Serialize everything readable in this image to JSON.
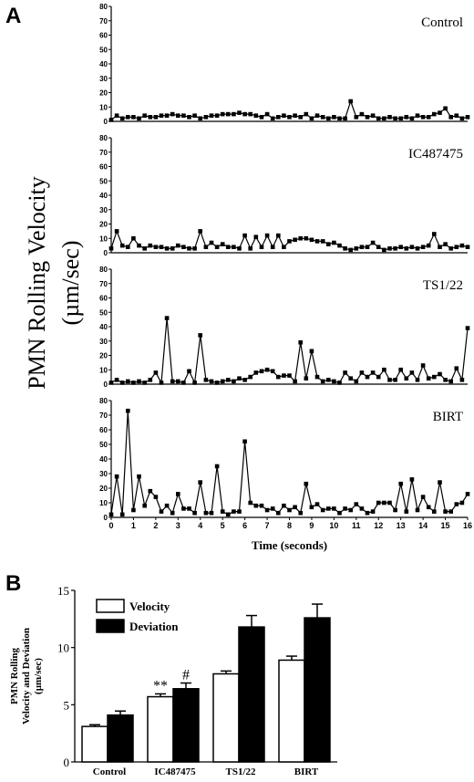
{
  "panel_a_label": "A",
  "panel_b_label": "B",
  "chart_data": [
    {
      "type": "line",
      "ylabel_lines": [
        "PMN Rolling Velocity",
        "(µm/sec)"
      ],
      "xlabel": "Time (seconds)",
      "xlim": [
        0,
        16
      ],
      "x_ticks": [
        "0",
        "1",
        "2",
        "3",
        "4",
        "5",
        "6",
        "7",
        "8",
        "9",
        "10",
        "11",
        "12",
        "13",
        "14",
        "15",
        "16"
      ],
      "ylim": [
        0,
        80
      ],
      "y_ticks": [
        "0",
        "10",
        "20",
        "30",
        "40",
        "50",
        "60",
        "70",
        "80"
      ],
      "panels": [
        {
          "label": "Control",
          "x": [
            0.0,
            0.25,
            0.5,
            0.75,
            1.0,
            1.25,
            1.5,
            1.75,
            2.0,
            2.25,
            2.5,
            2.75,
            3.0,
            3.25,
            3.5,
            3.75,
            4.0,
            4.25,
            4.5,
            4.75,
            5.0,
            5.25,
            5.5,
            5.75,
            6.0,
            6.25,
            6.5,
            6.75,
            7.0,
            7.25,
            7.5,
            7.75,
            8.0,
            8.25,
            8.5,
            8.75,
            9.0,
            9.25,
            9.5,
            9.75,
            10.0,
            10.25,
            10.5,
            10.75,
            11.0,
            11.25,
            11.5,
            11.75,
            12.0,
            12.25,
            12.5,
            12.75,
            13.0,
            13.25,
            13.5,
            13.75,
            14.0,
            14.25,
            14.5,
            14.75,
            15.0,
            15.25,
            15.5,
            15.75,
            16.0
          ],
          "values": [
            1,
            4,
            2,
            3,
            3,
            2,
            4,
            3,
            3,
            4,
            4,
            5,
            4,
            4,
            3,
            4,
            2,
            3,
            4,
            4,
            5,
            5,
            5,
            6,
            5,
            5,
            4,
            3,
            5,
            2,
            3,
            4,
            3,
            4,
            3,
            5,
            2,
            4,
            3,
            2,
            3,
            2,
            2,
            14,
            3,
            5,
            3,
            4,
            2,
            2,
            3,
            2,
            2,
            3,
            2,
            4,
            3,
            3,
            5,
            6,
            9,
            3,
            4,
            2,
            3
          ]
        },
        {
          "label": "IC487475",
          "x": [
            0.0,
            0.25,
            0.5,
            0.75,
            1.0,
            1.25,
            1.5,
            1.75,
            2.0,
            2.25,
            2.5,
            2.75,
            3.0,
            3.25,
            3.5,
            3.75,
            4.0,
            4.25,
            4.5,
            4.75,
            5.0,
            5.25,
            5.5,
            5.75,
            6.0,
            6.25,
            6.5,
            6.75,
            7.0,
            7.25,
            7.5,
            7.75,
            8.0,
            8.25,
            8.5,
            8.75,
            9.0,
            9.25,
            9.5,
            9.75,
            10.0,
            10.25,
            10.5,
            10.75,
            11.0,
            11.25,
            11.5,
            11.75,
            12.0,
            12.25,
            12.5,
            12.75,
            13.0,
            13.25,
            13.5,
            13.75,
            14.0,
            14.25,
            14.5,
            14.75,
            15.0,
            15.25,
            15.5,
            15.75,
            16.0
          ],
          "values": [
            3,
            15,
            5,
            4,
            10,
            5,
            3,
            5,
            4,
            4,
            3,
            3,
            5,
            4,
            3,
            3,
            15,
            4,
            7,
            4,
            6,
            4,
            4,
            3,
            12,
            3,
            11,
            4,
            12,
            4,
            12,
            4,
            8,
            9,
            10,
            10,
            9,
            8,
            8,
            6,
            7,
            5,
            3,
            2,
            3,
            4,
            4,
            7,
            4,
            2,
            3,
            3,
            4,
            3,
            4,
            3,
            4,
            5,
            13,
            4,
            6,
            3,
            4,
            5,
            4
          ]
        },
        {
          "label": "TS1/22",
          "x": [
            0.0,
            0.25,
            0.5,
            0.75,
            1.0,
            1.25,
            1.5,
            1.75,
            2.0,
            2.25,
            2.5,
            2.75,
            3.0,
            3.25,
            3.5,
            3.75,
            4.0,
            4.25,
            4.5,
            4.75,
            5.0,
            5.25,
            5.5,
            5.75,
            6.0,
            6.25,
            6.5,
            6.75,
            7.0,
            7.25,
            7.5,
            7.75,
            8.0,
            8.25,
            8.5,
            8.75,
            9.0,
            9.25,
            9.5,
            9.75,
            10.0,
            10.25,
            10.5,
            10.75,
            11.0,
            11.25,
            11.5,
            11.75,
            12.0,
            12.25,
            12.5,
            12.75,
            13.0,
            13.25,
            13.5,
            13.75,
            14.0,
            14.25,
            14.5,
            14.75,
            15.0,
            15.25,
            15.5,
            15.75,
            16.0
          ],
          "values": [
            1,
            3,
            1,
            2,
            1,
            2,
            1,
            3,
            8,
            1,
            46,
            2,
            2,
            1,
            9,
            1,
            34,
            3,
            2,
            1,
            2,
            3,
            2,
            4,
            3,
            5,
            8,
            9,
            10,
            9,
            5,
            6,
            6,
            2,
            29,
            4,
            23,
            5,
            2,
            3,
            2,
            1,
            8,
            4,
            2,
            8,
            5,
            8,
            5,
            10,
            3,
            3,
            10,
            4,
            8,
            3,
            13,
            4,
            5,
            7,
            3,
            2,
            11,
            3,
            39
          ]
        },
        {
          "label": "BIRT",
          "x": [
            0.0,
            0.25,
            0.5,
            0.75,
            1.0,
            1.25,
            1.5,
            1.75,
            2.0,
            2.25,
            2.5,
            2.75,
            3.0,
            3.25,
            3.5,
            3.75,
            4.0,
            4.25,
            4.5,
            4.75,
            5.0,
            5.25,
            5.5,
            5.75,
            6.0,
            6.25,
            6.5,
            6.75,
            7.0,
            7.25,
            7.5,
            7.75,
            8.0,
            8.25,
            8.5,
            8.75,
            9.0,
            9.25,
            9.5,
            9.75,
            10.0,
            10.25,
            10.5,
            10.75,
            11.0,
            11.25,
            11.5,
            11.75,
            12.0,
            12.25,
            12.5,
            12.75,
            13.0,
            13.25,
            13.5,
            13.75,
            14.0,
            14.25,
            14.5,
            14.75,
            15.0,
            15.25,
            15.5,
            15.75,
            16.0
          ],
          "values": [
            2,
            28,
            2,
            73,
            5,
            28,
            8,
            18,
            14,
            4,
            8,
            3,
            16,
            6,
            6,
            3,
            24,
            3,
            3,
            35,
            4,
            2,
            4,
            4,
            52,
            10,
            8,
            8,
            5,
            6,
            3,
            8,
            5,
            7,
            3,
            23,
            7,
            9,
            5,
            6,
            6,
            3,
            6,
            5,
            9,
            6,
            3,
            4,
            10,
            10,
            10,
            5,
            23,
            4,
            26,
            5,
            14,
            7,
            4,
            24,
            4,
            4,
            9,
            10,
            16
          ]
        }
      ]
    },
    {
      "type": "bar",
      "ylabel_lines": [
        "PMN Rolling",
        "Velocity and Deviation",
        "(µm/sec)"
      ],
      "categories": [
        "Control",
        "IC487475",
        "TS1/22",
        "BIRT"
      ],
      "series": [
        {
          "name": "Velocity",
          "values": [
            3.1,
            5.7,
            7.7,
            8.9
          ],
          "errors": [
            0.15,
            0.25,
            0.25,
            0.35
          ],
          "color": "#ffffff"
        },
        {
          "name": "Deviation",
          "values": [
            4.1,
            6.4,
            11.8,
            12.6
          ],
          "errors": [
            0.35,
            0.5,
            1.0,
            1.2
          ],
          "color": "#000000"
        }
      ],
      "ylim": [
        0,
        15
      ],
      "y_ticks": [
        "0",
        "5",
        "10",
        "15"
      ],
      "annotations": [
        {
          "text": "**",
          "category": "IC487475",
          "series": "Velocity"
        },
        {
          "text": "#",
          "category": "IC487475",
          "series": "Deviation"
        }
      ],
      "legend_position": "top-left"
    }
  ]
}
